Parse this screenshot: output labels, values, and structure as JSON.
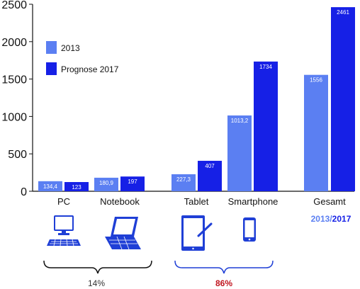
{
  "chart_data": {
    "type": "bar",
    "categories": [
      "PC",
      "Notebook",
      "Tablet",
      "Smartphone",
      "Gesamt"
    ],
    "series": [
      {
        "name": "2013",
        "values": [
          134.4,
          180.9,
          227.3,
          1013.2,
          1556
        ],
        "labels": [
          "134,4",
          "180,9",
          "227,3",
          "1013,2",
          "1556"
        ],
        "color": "#5b7ff2"
      },
      {
        "name": "Prognose 2017",
        "values": [
          123,
          197,
          407,
          1734,
          2461
        ],
        "labels": [
          "123",
          "197",
          "407",
          "1734",
          "2461"
        ],
        "color": "#1620e6"
      }
    ],
    "ylim": [
      0,
      2500
    ],
    "yticks": [
      "0",
      "500",
      "1000",
      "1500",
      "2000",
      "2500"
    ],
    "ytick_values": [
      0,
      500,
      1000,
      1500,
      2000,
      2500
    ],
    "legend_placement": "top-left",
    "grid": false
  },
  "annotations": {
    "year_2013": "2013",
    "slash": "/",
    "year_2017": "2017",
    "left_share": "14%",
    "right_share": "86%",
    "share_colors": {
      "left": "#333333",
      "right": "#c0141e"
    }
  },
  "icons": [
    "desktop-pc-icon",
    "laptop-icon",
    "tablet-icon",
    "smartphone-icon"
  ],
  "colors": {
    "bar_2013": "#5b7ff2",
    "bar_2017": "#1620e6",
    "brace_left": "#111111",
    "brace_right": "#1f3fd6"
  }
}
